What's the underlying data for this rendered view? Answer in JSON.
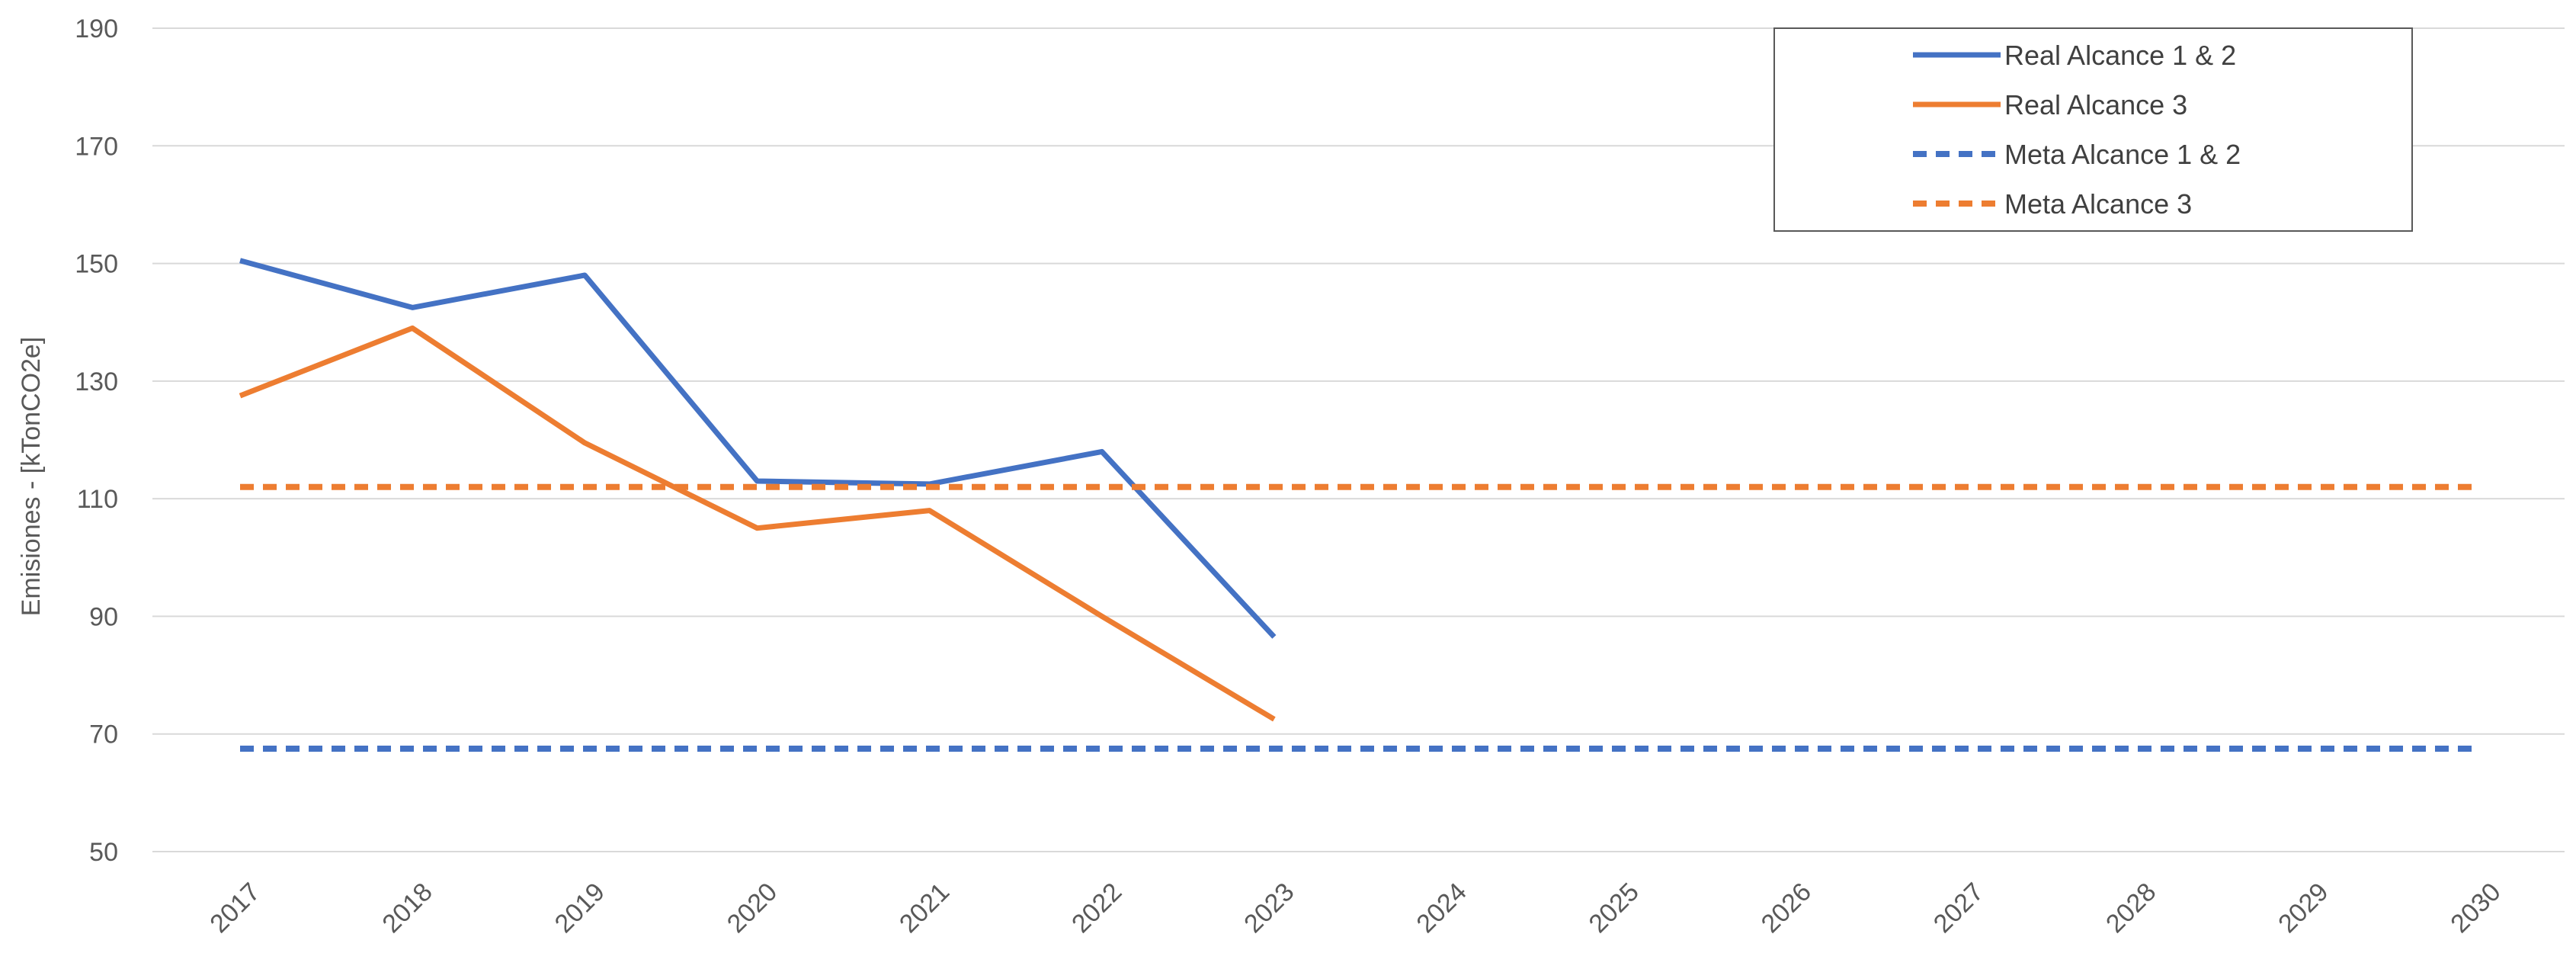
{
  "chart_data": {
    "type": "line",
    "title": "",
    "xlabel": "",
    "ylabel": "Emisiones - [kTonCO2e]",
    "categories": [
      "2017",
      "2018",
      "2019",
      "2020",
      "2021",
      "2022",
      "2023",
      "2024",
      "2025",
      "2026",
      "2027",
      "2028",
      "2029",
      "2030"
    ],
    "yticks": [
      "50",
      "70",
      "90",
      "110",
      "130",
      "150",
      "170",
      "190"
    ],
    "ylim": [
      50,
      190
    ],
    "grid": true,
    "legend_position": "top-right",
    "series": [
      {
        "name": "Real Alcance 1 & 2",
        "color": "#4472C4",
        "style": "solid",
        "values": [
          150.5,
          142.5,
          148,
          113,
          112.5,
          118,
          86.5,
          null,
          null,
          null,
          null,
          null,
          null,
          null
        ]
      },
      {
        "name": "Real Alcance 3",
        "color": "#ED7D31",
        "style": "solid",
        "values": [
          127.5,
          139,
          119.5,
          105,
          108,
          90,
          72.5,
          null,
          null,
          null,
          null,
          null,
          null,
          null
        ]
      },
      {
        "name": "Meta Alcance 1 & 2",
        "color": "#4472C4",
        "style": "dashed",
        "values": [
          67.5,
          67.5,
          67.5,
          67.5,
          67.5,
          67.5,
          67.5,
          67.5,
          67.5,
          67.5,
          67.5,
          67.5,
          67.5,
          67.5
        ]
      },
      {
        "name": "Meta Alcance 3",
        "color": "#ED7D31",
        "style": "dashed",
        "values": [
          112,
          112,
          112,
          112,
          112,
          112,
          112,
          112,
          112,
          112,
          112,
          112,
          112,
          112
        ]
      }
    ]
  }
}
